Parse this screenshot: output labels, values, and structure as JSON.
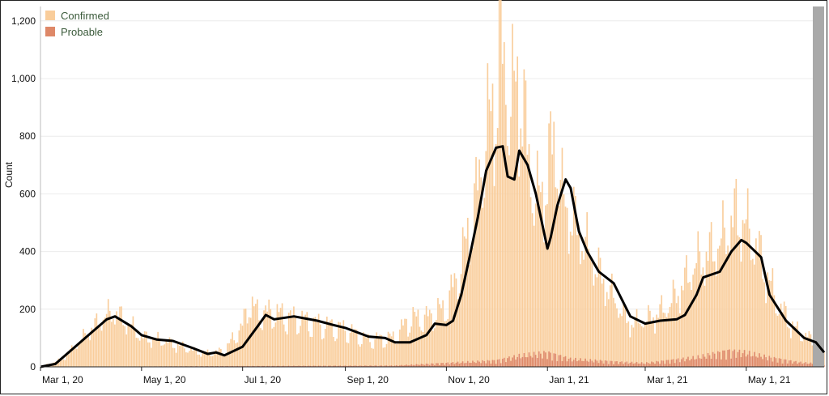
{
  "colors": {
    "confirmed": "#f9cd9b",
    "probable": "#de8868",
    "average_line": "#000000",
    "grid": "#ececec",
    "tick_text": "#111111",
    "legend_text": "#3a5a3a"
  },
  "chart_data": {
    "type": "bar",
    "xlabel": "",
    "ylabel": "Count",
    "ylim": [
      0,
      1250
    ],
    "y_ticks": [
      0,
      200,
      400,
      600,
      800,
      1000,
      1200
    ],
    "y_tick_labels": [
      "0",
      "200",
      "400",
      "600",
      "800",
      "1,000",
      "1,200"
    ],
    "x_tick_labels": [
      "Mar 1, 20",
      "May 1, 20",
      "Jul 1, 20",
      "Sep 1, 20",
      "Nov 1, 20",
      "Jan 1, 21",
      "Mar 1, 21",
      "May 1, 21"
    ],
    "x_range": [
      "2020-03-01",
      "2021-06-17"
    ],
    "grid": true,
    "legend_position": "top-left",
    "legend": [
      "Confirmed",
      "Probable"
    ],
    "series": [
      {
        "name": "Confirmed",
        "kind": "daily bars",
        "points": [
          [
            "2020-03-01",
            0
          ],
          [
            "2020-03-15",
            30
          ],
          [
            "2020-04-01",
            140
          ],
          [
            "2020-04-10",
            190
          ],
          [
            "2020-04-15",
            200
          ],
          [
            "2020-04-25",
            150
          ],
          [
            "2020-05-01",
            110
          ],
          [
            "2020-05-15",
            95
          ],
          [
            "2020-06-01",
            60
          ],
          [
            "2020-06-10",
            50
          ],
          [
            "2020-06-20",
            60
          ],
          [
            "2020-07-01",
            150
          ],
          [
            "2020-07-05",
            240
          ],
          [
            "2020-07-10",
            200
          ],
          [
            "2020-07-20",
            200
          ],
          [
            "2020-08-01",
            180
          ],
          [
            "2020-08-15",
            160
          ],
          [
            "2020-09-01",
            140
          ],
          [
            "2020-09-15",
            100
          ],
          [
            "2020-10-01",
            110
          ],
          [
            "2020-10-10",
            180
          ],
          [
            "2020-10-20",
            180
          ],
          [
            "2020-11-01",
            220
          ],
          [
            "2020-11-10",
            380
          ],
          [
            "2020-11-20",
            650
          ],
          [
            "2020-11-25",
            850
          ],
          [
            "2020-12-01",
            1000
          ],
          [
            "2020-12-03",
            1200
          ],
          [
            "2020-12-10",
            950
          ],
          [
            "2020-12-15",
            1100
          ],
          [
            "2020-12-20",
            800
          ],
          [
            "2020-12-25",
            600
          ],
          [
            "2021-01-01",
            700
          ],
          [
            "2021-01-05",
            850
          ],
          [
            "2021-01-10",
            620
          ],
          [
            "2021-01-20",
            500
          ],
          [
            "2021-02-01",
            350
          ],
          [
            "2021-02-15",
            200
          ],
          [
            "2021-02-20",
            160
          ],
          [
            "2021-03-01",
            170
          ],
          [
            "2021-03-15",
            220
          ],
          [
            "2021-04-01",
            380
          ],
          [
            "2021-04-15",
            450
          ],
          [
            "2021-04-25",
            560
          ],
          [
            "2021-05-01",
            520
          ],
          [
            "2021-05-10",
            400
          ],
          [
            "2021-05-20",
            230
          ],
          [
            "2021-06-01",
            130
          ],
          [
            "2021-06-10",
            100
          ],
          [
            "2021-06-17",
            60
          ]
        ]
      },
      {
        "name": "Probable",
        "kind": "daily bars",
        "points": [
          [
            "2020-03-01",
            0
          ],
          [
            "2020-06-01",
            2
          ],
          [
            "2020-10-01",
            4
          ],
          [
            "2020-12-01",
            20
          ],
          [
            "2020-12-15",
            35
          ],
          [
            "2021-01-01",
            45
          ],
          [
            "2021-01-15",
            25
          ],
          [
            "2021-02-15",
            15
          ],
          [
            "2021-03-01",
            12
          ],
          [
            "2021-04-01",
            30
          ],
          [
            "2021-04-20",
            50
          ],
          [
            "2021-05-01",
            45
          ],
          [
            "2021-05-15",
            30
          ],
          [
            "2021-06-01",
            15
          ],
          [
            "2021-06-17",
            8
          ]
        ]
      },
      {
        "name": "",
        "kind": "moving-average line",
        "points": [
          [
            "2020-03-01",
            0
          ],
          [
            "2020-03-10",
            10
          ],
          [
            "2020-03-20",
            60
          ],
          [
            "2020-04-01",
            120
          ],
          [
            "2020-04-10",
            165
          ],
          [
            "2020-04-15",
            175
          ],
          [
            "2020-04-25",
            140
          ],
          [
            "2020-05-01",
            110
          ],
          [
            "2020-05-10",
            95
          ],
          [
            "2020-05-20",
            90
          ],
          [
            "2020-06-01",
            65
          ],
          [
            "2020-06-10",
            45
          ],
          [
            "2020-06-15",
            50
          ],
          [
            "2020-06-20",
            40
          ],
          [
            "2020-07-01",
            70
          ],
          [
            "2020-07-10",
            140
          ],
          [
            "2020-07-15",
            180
          ],
          [
            "2020-07-20",
            165
          ],
          [
            "2020-08-01",
            175
          ],
          [
            "2020-08-15",
            160
          ],
          [
            "2020-08-25",
            145
          ],
          [
            "2020-09-01",
            135
          ],
          [
            "2020-09-15",
            105
          ],
          [
            "2020-09-25",
            100
          ],
          [
            "2020-10-01",
            85
          ],
          [
            "2020-10-10",
            85
          ],
          [
            "2020-10-20",
            110
          ],
          [
            "2020-10-25",
            150
          ],
          [
            "2020-11-01",
            145
          ],
          [
            "2020-11-05",
            160
          ],
          [
            "2020-11-10",
            250
          ],
          [
            "2020-11-15",
            380
          ],
          [
            "2020-11-20",
            520
          ],
          [
            "2020-11-25",
            680
          ],
          [
            "2020-12-01",
            760
          ],
          [
            "2020-12-05",
            765
          ],
          [
            "2020-12-08",
            660
          ],
          [
            "2020-12-12",
            650
          ],
          [
            "2020-12-15",
            750
          ],
          [
            "2020-12-20",
            700
          ],
          [
            "2020-12-25",
            600
          ],
          [
            "2021-01-01",
            410
          ],
          [
            "2021-01-03",
            450
          ],
          [
            "2021-01-07",
            560
          ],
          [
            "2021-01-12",
            650
          ],
          [
            "2021-01-15",
            620
          ],
          [
            "2021-01-20",
            470
          ],
          [
            "2021-01-25",
            400
          ],
          [
            "2021-02-01",
            330
          ],
          [
            "2021-02-10",
            290
          ],
          [
            "2021-02-20",
            175
          ],
          [
            "2021-03-01",
            150
          ],
          [
            "2021-03-10",
            160
          ],
          [
            "2021-03-20",
            165
          ],
          [
            "2021-03-25",
            180
          ],
          [
            "2021-04-01",
            250
          ],
          [
            "2021-04-05",
            310
          ],
          [
            "2021-04-15",
            330
          ],
          [
            "2021-04-22",
            400
          ],
          [
            "2021-04-28",
            440
          ],
          [
            "2021-05-01",
            430
          ],
          [
            "2021-05-10",
            380
          ],
          [
            "2021-05-15",
            250
          ],
          [
            "2021-05-25",
            160
          ],
          [
            "2021-06-05",
            100
          ],
          [
            "2021-06-12",
            85
          ],
          [
            "2021-06-17",
            50
          ]
        ]
      }
    ]
  }
}
